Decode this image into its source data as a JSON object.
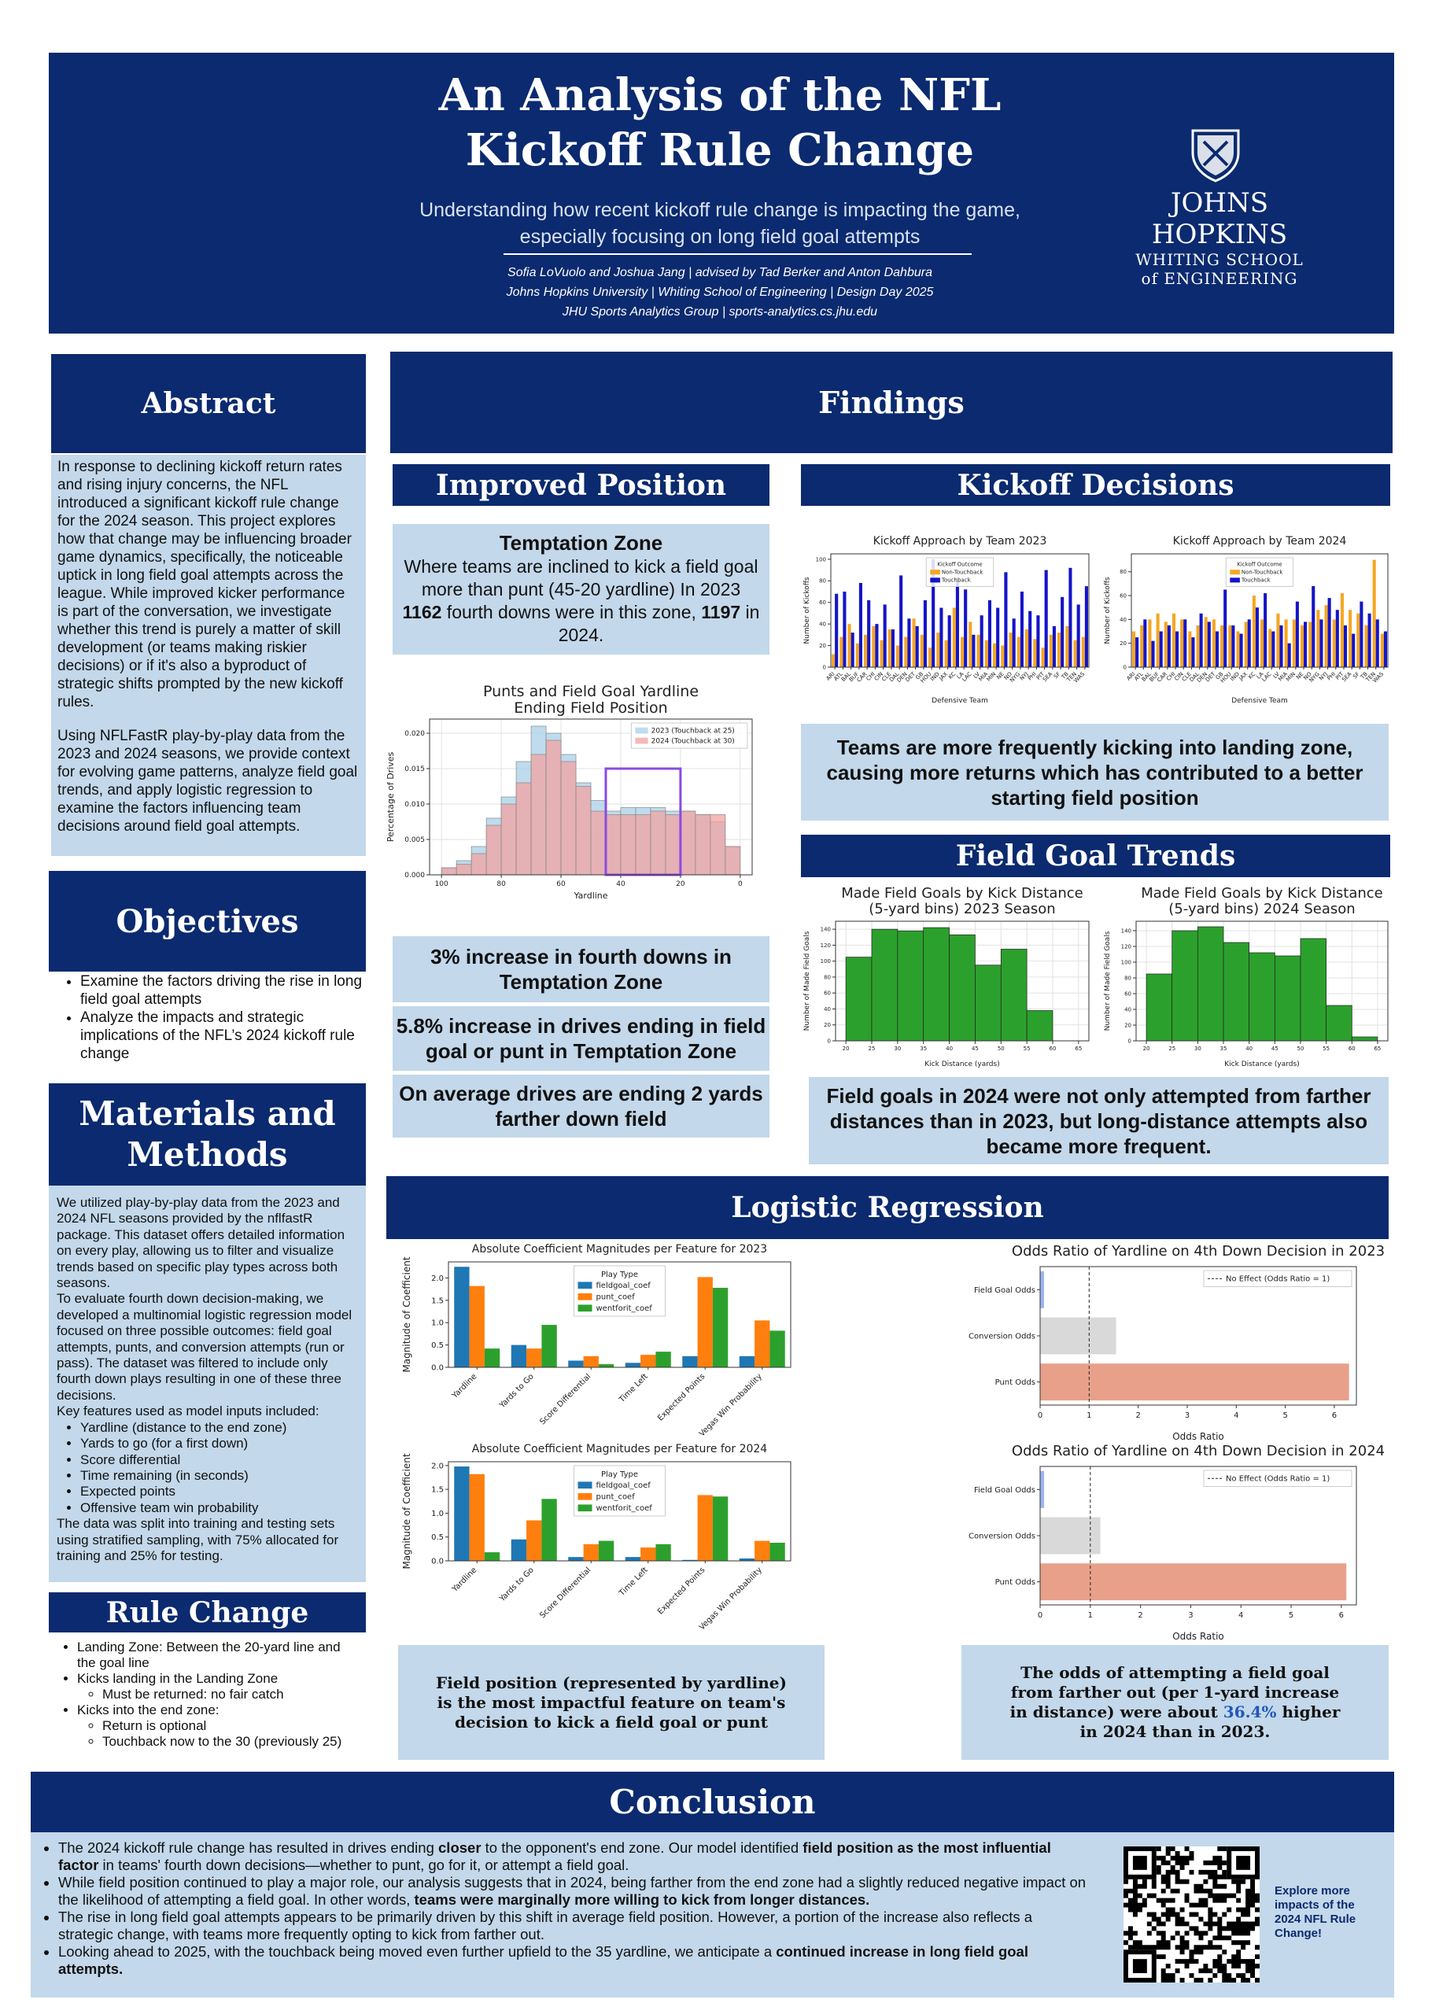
{
  "header": {
    "title": [
      "An Analysis of the NFL",
      "Kickoff Rule Change"
    ],
    "subtitle": [
      "Understanding how recent kickoff rule change is impacting the game,",
      "especially focusing on long field goal attempts"
    ],
    "credits": [
      "Sofia LoVuolo and Joshua Jang | advised by Tad Berker and Anton Dahbura",
      "Johns Hopkins University | Whiting School of Engineering | Design Day 2025",
      "JHU Sports Analytics Group | sports-analytics.cs.jhu.edu"
    ],
    "logo": [
      "JOHNS HOPKINS",
      "WHITING SCHOOL",
      "of ENGINEERING"
    ]
  },
  "abstract": {
    "heading": "Abstract",
    "paragraphs": [
      "In response to declining kickoff return rates and rising injury concerns, the NFL introduced a significant kickoff rule change for the 2024 season. This project explores how that change may be influencing broader game dynamics, specifically, the noticeable uptick in long field goal attempts across the league. While improved kicker performance is part of the conversation, we investigate whether this trend is purely a matter of skill development (or teams making riskier decisions) or if it's also a byproduct of strategic shifts prompted by the new kickoff rules.",
      "Using NFLFastR play-by-play data from the 2023 and 2024 seasons, we provide context for evolving game patterns, analyze field goal trends, and apply logistic regression to examine the factors influencing team decisions around field goal attempts."
    ]
  },
  "objectives": {
    "heading": "Objectives",
    "items": [
      "Examine the factors driving the rise in long field goal attempts",
      "Analyze the impacts and strategic implications of the NFL’s 2024 kickoff rule change"
    ]
  },
  "materials": {
    "heading": "Materials and Methods",
    "paragraphs": [
      "We utilized play-by-play data from the 2023 and 2024 NFL seasons provided by the nflfastR package. This dataset offers detailed information on every play, allowing us to filter and visualize trends based on specific play types across both seasons.",
      "To evaluate fourth down decision-making, we developed a multinomial logistic regression model focused on three possible outcomes: field goal attempts, punts, and conversion attempts (run or pass). The dataset was filtered to include only fourth down plays resulting in one of these three decisions.",
      "Key features used as model inputs included:"
    ],
    "features": [
      "Yardline (distance to the end zone)",
      "Yards to go (for a first down)",
      "Score differential",
      "Time remaining (in seconds)",
      "Expected points",
      "Offensive team win probability"
    ],
    "closing": "The data was split into training and testing sets using stratified sampling, with 75% allocated for training and 25% for testing."
  },
  "rule_change": {
    "heading": "Rule Change",
    "items": [
      {
        "text": "Landing Zone: Between the 20-yard line and the goal line",
        "sub": []
      },
      {
        "text": "Kicks landing in the Landing Zone",
        "sub": [
          "Must be returned: no fair catch"
        ]
      },
      {
        "text": "Kicks into the end zone:",
        "sub": [
          "Return is optional",
          "Touchback now to the 30 (previously 25)"
        ]
      }
    ]
  },
  "findings": {
    "heading": "Findings",
    "improved_position": {
      "heading": "Improved Position",
      "zone_title": "Temptation Zone",
      "zone_text": [
        "Where teams are inclined to kick a field goal more than punt (45-20 yardline) In 2023 ",
        {
          "b": "1162"
        },
        " fourth downs were in this zone, ",
        {
          "b": "1197"
        },
        " in 2024."
      ],
      "stats": [
        "3% increase in fourth downs in Temptation Zone",
        "5.8% increase in drives ending in field goal or punt in Temptation Zone",
        "On average drives are ending 2 yards farther down field"
      ]
    },
    "kickoff_decisions": {
      "heading": "Kickoff Decisions",
      "text": "Teams are more frequently kicking into landing zone, causing more returns which has contributed to a better starting field position"
    },
    "field_goal_trends": {
      "heading": "Field Goal Trends",
      "text": "Field goals in 2024 were not only attempted from farther distances than in 2023, but long-distance attempts also became more frequent."
    }
  },
  "logistic_regression": {
    "heading": "Logistic Regression",
    "left_text": "Field position (represented by yardline) is the most impactful feature on team's decision to kick a field goal or punt",
    "right_text": [
      "The odds of attempting a field goal from farther out (per 1-yard increase in distance) were about ",
      {
        "c": "36.4%"
      },
      " higher in 2024 than in 2023."
    ]
  },
  "conclusion": {
    "heading": "Conclusion",
    "items": [
      [
        "The 2024 kickoff rule change has resulted in drives ending ",
        {
          "b": "closer"
        },
        " to the opponent's end zone. Our model identified ",
        {
          "b": "field position as the most influential factor"
        },
        " in teams' fourth down decisions—whether to punt, go for it, or attempt a field goal."
      ],
      [
        "While field position continued to play a major role, our analysis suggests that in 2024, being farther from the end zone had a slightly reduced negative impact on the likelihood of attempting a field goal. In other words, ",
        {
          "b": "teams were marginally more willing to kick from longer distances."
        }
      ],
      [
        "The rise in long field goal attempts appears to be primarily driven by this shift in average field position. However, a portion of the increase also reflects a strategic change, with teams more frequently opting to kick from farther out."
      ],
      [
        "Looking ahead to 2025, with the touchback being moved even further upfield to the 35 yardline, we anticipate a ",
        {
          "b": "continued increase in long field goal attempts."
        }
      ]
    ],
    "qr_caption": "Explore more impacts of the 2024 NFL Rule Change!"
  },
  "chart_data": [
    {
      "type": "histogram",
      "title": [
        "Punts and Field Goal Yardline",
        "Ending Field Position"
      ],
      "x_label": "Yardline",
      "y_label": "Percentage of Drives",
      "bins": [
        100,
        95,
        90,
        85,
        80,
        75,
        70,
        65,
        60,
        55,
        50,
        45,
        40,
        35,
        30,
        25,
        20,
        15,
        10,
        5,
        0
      ],
      "series": [
        {
          "name": "2023 (Touchback at 25)",
          "color": "#a8d0e8",
          "values": [
            0.001,
            0.002,
            0.004,
            0.008,
            0.011,
            0.016,
            0.021,
            0.02,
            0.017,
            0.013,
            0.0105,
            0.009,
            0.0095,
            0.0095,
            0.0095,
            0.009,
            0.009,
            0.0085,
            0.0075,
            0.004
          ]
        },
        {
          "name": "2024 (Touchback at 30)",
          "color": "#f2a3a0",
          "values": [
            0.001,
            0.0015,
            0.003,
            0.007,
            0.01,
            0.013,
            0.017,
            0.019,
            0.016,
            0.0125,
            0.009,
            0.0085,
            0.0085,
            0.0085,
            0.009,
            0.0085,
            0.009,
            0.0085,
            0.0085,
            0.004
          ]
        }
      ],
      "alpha": 0.75,
      "highlight": {
        "x": [
          45,
          20
        ],
        "y": 0.015,
        "color": "#8a4be0"
      },
      "xlim": [
        104,
        -4
      ],
      "xticks": [
        100,
        80,
        60,
        40,
        20,
        0
      ],
      "ylim": [
        0,
        0.022
      ],
      "yticks": [
        {
          "value": 0,
          "label": "0.000"
        },
        0.005,
        {
          "value": 0.01,
          "label": "0.010"
        },
        0.015,
        {
          "value": 0.02,
          "label": "0.020"
        }
      ],
      "grid": true,
      "legend": "upper right"
    },
    {
      "type": "bar",
      "title": "Kickoff Approach by Team 2023",
      "x_label": "Defensive Team",
      "y_label": "Number of Kickoffs",
      "categories": [
        "ARI",
        "ATL",
        "BAL",
        "BUF",
        "CAR",
        "CHI",
        "CIN",
        "CLE",
        "DAL",
        "DEN",
        "DET",
        "GB",
        "HOU",
        "IND",
        "JAX",
        "KC",
        "LA",
        "LAC",
        "LV",
        "MIA",
        "MIN",
        "NE",
        "NO",
        "NYG",
        "NYJ",
        "PHI",
        "PIT",
        "SEA",
        "SF",
        "TB",
        "TEN",
        "WAS"
      ],
      "legend_title": "Kickoff Outcome",
      "legend": "upper center",
      "series": [
        {
          "name": "Non-Touchback",
          "color": "#f5a623",
          "values": [
            12,
            28,
            40,
            22,
            30,
            38,
            25,
            35,
            20,
            28,
            45,
            30,
            18,
            32,
            25,
            55,
            28,
            42,
            30,
            25,
            22,
            20,
            32,
            28,
            35,
            26,
            18,
            30,
            32,
            38,
            25,
            28
          ]
        },
        {
          "name": "Touchback",
          "color": "#1414c8",
          "values": [
            68,
            70,
            32,
            78,
            62,
            40,
            58,
            35,
            85,
            45,
            38,
            62,
            100,
            55,
            48,
            80,
            72,
            30,
            48,
            62,
            55,
            88,
            45,
            70,
            52,
            48,
            90,
            38,
            65,
            92,
            58,
            75
          ]
        }
      ],
      "ylim": [
        0,
        105
      ],
      "yticks": [
        0,
        20,
        40,
        60,
        80,
        100
      ],
      "grid": false
    },
    {
      "type": "bar",
      "title": "Kickoff Approach by Team 2024",
      "x_label": "Defensive Team",
      "y_label": "Number of Kickoffs",
      "categories": [
        "ARI",
        "ATL",
        "BAL",
        "BUF",
        "CAR",
        "CHI",
        "CIN",
        "CLE",
        "DAL",
        "DEN",
        "DET",
        "GB",
        "HOU",
        "IND",
        "JAX",
        "KC",
        "LA",
        "LAC",
        "LV",
        "MIA",
        "MIN",
        "NE",
        "NO",
        "NYG",
        "NYJ",
        "PHI",
        "PIT",
        "SEA",
        "SF",
        "TB",
        "TEN",
        "WAS"
      ],
      "legend_title": "Kickoff Outcome",
      "legend": "upper center",
      "series": [
        {
          "name": "Non-Touchback",
          "color": "#f5a623",
          "values": [
            30,
            35,
            40,
            45,
            38,
            45,
            40,
            30,
            35,
            42,
            40,
            35,
            35,
            30,
            38,
            60,
            40,
            32,
            45,
            40,
            40,
            35,
            38,
            48,
            52,
            40,
            62,
            48,
            45,
            35,
            90,
            28
          ]
        },
        {
          "name": "Touchback",
          "color": "#1414c8",
          "values": [
            25,
            40,
            22,
            30,
            35,
            30,
            40,
            25,
            45,
            38,
            30,
            65,
            35,
            28,
            40,
            50,
            62,
            30,
            35,
            20,
            55,
            38,
            68,
            40,
            58,
            48,
            35,
            28,
            55,
            45,
            40,
            30
          ]
        }
      ],
      "ylim": [
        0,
        95
      ],
      "yticks": [
        0,
        20,
        40,
        60,
        80
      ],
      "grid": false
    },
    {
      "type": "histogram",
      "title": [
        "Made Field Goals by Kick Distance",
        "(5-yard bins) 2023 Season"
      ],
      "x_label": "Kick Distance (yards)",
      "y_label": "Number of Made Field Goals",
      "bins": [
        20,
        25,
        30,
        35,
        40,
        45,
        50,
        55,
        60
      ],
      "series": [
        {
          "color": "#2ca02c",
          "values": [
            105,
            140,
            138,
            142,
            133,
            95,
            115,
            38
          ]
        }
      ],
      "xlim": [
        18,
        67
      ],
      "xticks": [
        20,
        25,
        30,
        35,
        40,
        45,
        50,
        55,
        60,
        65
      ],
      "ylim": [
        0,
        150
      ],
      "yticks": [
        0,
        20,
        40,
        60,
        80,
        100,
        120,
        140
      ],
      "grid": true
    },
    {
      "type": "histogram",
      "title": [
        "Made Field Goals by Kick Distance",
        "(5-yard bins) 2024 Season"
      ],
      "x_label": "Kick Distance (yards)",
      "y_label": "Number of Made Field Goals",
      "bins": [
        20,
        25,
        30,
        35,
        40,
        45,
        50,
        55,
        60,
        65
      ],
      "series": [
        {
          "color": "#2ca02c",
          "values": [
            85,
            140,
            145,
            125,
            112,
            108,
            130,
            45,
            5
          ]
        }
      ],
      "xlim": [
        18,
        67
      ],
      "xticks": [
        20,
        25,
        30,
        35,
        40,
        45,
        50,
        55,
        60,
        65
      ],
      "ylim": [
        0,
        152
      ],
      "yticks": [
        0,
        20,
        40,
        60,
        80,
        100,
        120,
        140
      ],
      "grid": true
    },
    {
      "type": "bar",
      "title": "Absolute Coefficient Magnitudes per Feature for 2023",
      "y_label": "Magnitude of Coefficient",
      "categories": [
        "Yardline",
        "Yards to Go",
        "Score Differential",
        "Time Left",
        "Expected Points",
        "Vegas Win Probability"
      ],
      "legend_title": "Play Type",
      "legend": "upper center",
      "series": [
        {
          "name": "fieldgoal_coef",
          "color": "#1f77b4",
          "values": [
            2.25,
            0.5,
            0.15,
            0.1,
            0.25,
            0.25
          ]
        },
        {
          "name": "punt_coef",
          "color": "#ff7f0e",
          "values": [
            1.82,
            0.42,
            0.25,
            0.28,
            2.02,
            1.05
          ]
        },
        {
          "name": "wentforit_coef",
          "color": "#2ca02c",
          "values": [
            0.42,
            0.95,
            0.07,
            0.35,
            1.78,
            0.82
          ]
        }
      ],
      "ylim": [
        0,
        2.36
      ],
      "yticks": [
        {
          "value": 0,
          "label": "0.0"
        },
        0.5,
        {
          "value": 1,
          "label": "1.0"
        },
        1.5,
        {
          "value": 2,
          "label": "2.0"
        }
      ],
      "grid": false
    },
    {
      "type": "bar",
      "title": "Absolute Coefficient Magnitudes per Feature for 2024",
      "y_label": "Magnitude of Coefficient",
      "categories": [
        "Yardline",
        "Yards to Go",
        "Score Differential",
        "Time Left",
        "Expected Points",
        "Vegas Win Probability"
      ],
      "legend_title": "Play Type",
      "legend": "upper center",
      "series": [
        {
          "name": "fieldgoal_coef",
          "color": "#1f77b4",
          "values": [
            1.98,
            0.45,
            0.08,
            0.08,
            0.02,
            0.05
          ]
        },
        {
          "name": "punt_coef",
          "color": "#ff7f0e",
          "values": [
            1.82,
            0.85,
            0.35,
            0.28,
            1.38,
            0.42
          ]
        },
        {
          "name": "wentforit_coef",
          "color": "#2ca02c",
          "values": [
            0.18,
            1.3,
            0.42,
            0.35,
            1.35,
            0.38
          ]
        }
      ],
      "ylim": [
        0,
        2.08
      ],
      "yticks": [
        {
          "value": 0,
          "label": "0.0"
        },
        0.5,
        {
          "value": 1,
          "label": "1.0"
        },
        1.5,
        {
          "value": 2,
          "label": "2.0"
        }
      ],
      "grid": false
    },
    {
      "type": "barh",
      "title": "Odds Ratio of Yardline on 4th Down Decision in 2023",
      "x_label": "Odds Ratio",
      "categories": [
        "Field Goal Odds",
        "Conversion Odds",
        "Punt Odds"
      ],
      "values": [
        0.08,
        1.55,
        6.3
      ],
      "colors": [
        "#9db4f0",
        "#d9d9d9",
        "#e8a08a"
      ],
      "reference": {
        "value": 1,
        "label": "No Effect (Odds Ratio = 1)"
      },
      "legend": "upper right",
      "xlim": [
        0,
        6.45
      ],
      "xticks": [
        0,
        1,
        2,
        3,
        4,
        5,
        6
      ]
    },
    {
      "type": "barh",
      "title": "Odds Ratio of Yardline on 4th Down Decision in 2024",
      "x_label": "Odds Ratio",
      "categories": [
        "Field Goal Odds",
        "Conversion Odds",
        "Punt Odds"
      ],
      "values": [
        0.08,
        1.2,
        6.1
      ],
      "colors": [
        "#9db4f0",
        "#d9d9d9",
        "#e8a08a"
      ],
      "reference": {
        "value": 1,
        "label": "No Effect (Odds Ratio = 1)"
      },
      "legend": "upper right",
      "xlim": [
        0,
        6.3
      ],
      "xticks": [
        0,
        1,
        2,
        3,
        4,
        5,
        6
      ]
    }
  ]
}
